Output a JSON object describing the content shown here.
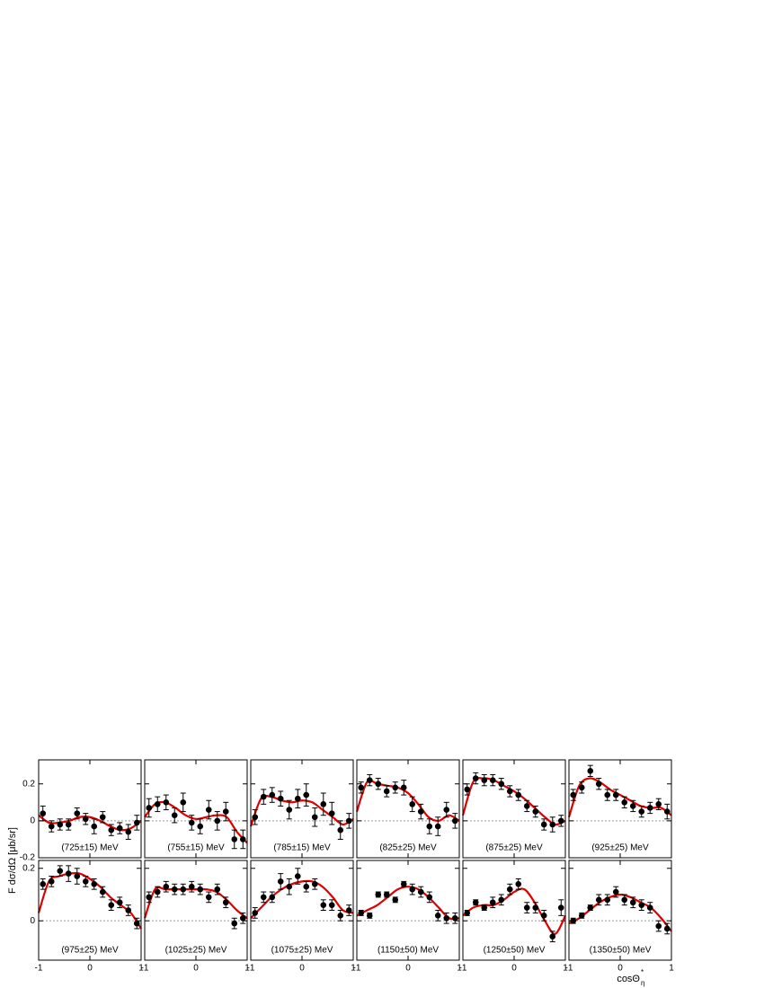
{
  "axis_labels": {
    "y": "F dσ/dΩ [μb/sr]",
    "x": "cosΘ",
    "x_sup": "*",
    "x_sub": "η"
  },
  "chart_data": [
    {
      "type": "scatter",
      "label": "(725±15) MeV",
      "color": "#000000",
      "fit_color": "#e00000",
      "zero_line": true,
      "x": [
        -0.917,
        -0.75,
        -0.583,
        -0.417,
        -0.25,
        -0.083,
        0.083,
        0.25,
        0.417,
        0.583,
        0.75,
        0.917
      ],
      "values": [
        0.04,
        -0.03,
        -0.02,
        -0.02,
        0.04,
        0.01,
        -0.03,
        0.02,
        -0.05,
        -0.04,
        -0.06,
        -0.01
      ],
      "errors": [
        0.04,
        0.03,
        0.03,
        0.03,
        0.03,
        0.03,
        0.04,
        0.03,
        0.03,
        0.03,
        0.04,
        0.04
      ],
      "fit": {
        "x": [
          -1,
          -0.8,
          -0.6,
          -0.4,
          -0.2,
          0,
          0.2,
          0.4,
          0.6,
          0.8,
          1
        ],
        "values": [
          0.03,
          -0.01,
          -0.01,
          0.0,
          0.02,
          0.02,
          0.0,
          -0.03,
          -0.05,
          -0.04,
          0.0
        ]
      },
      "xlim": [
        -1,
        1
      ],
      "xticks": [
        -1,
        0,
        1
      ],
      "ylim": [
        -0.2,
        0.33
      ],
      "yticks": [
        -0.2,
        0,
        0.2
      ]
    },
    {
      "type": "scatter",
      "label": "(755±15) MeV",
      "color": "#000000",
      "fit_color": "#e00000",
      "zero_line": true,
      "x": [
        -0.917,
        -0.75,
        -0.583,
        -0.417,
        -0.25,
        -0.083,
        0.083,
        0.25,
        0.417,
        0.583,
        0.75,
        0.917
      ],
      "values": [
        0.07,
        0.09,
        0.1,
        0.03,
        0.1,
        -0.01,
        -0.03,
        0.06,
        0.0,
        0.05,
        -0.1,
        -0.1
      ],
      "errors": [
        0.05,
        0.04,
        0.04,
        0.04,
        0.05,
        0.04,
        0.04,
        0.05,
        0.05,
        0.05,
        0.05,
        0.05
      ],
      "fit": {
        "x": [
          -1,
          -0.8,
          -0.6,
          -0.4,
          -0.2,
          0,
          0.2,
          0.4,
          0.6,
          0.8,
          1
        ],
        "values": [
          0.02,
          0.09,
          0.1,
          0.07,
          0.03,
          0.01,
          0.02,
          0.03,
          0.02,
          -0.06,
          -0.12
        ]
      },
      "xlim": [
        -1,
        1
      ],
      "xticks": [
        -1,
        0,
        1
      ],
      "ylim": [
        -0.2,
        0.33
      ],
      "yticks": [
        -0.2,
        0,
        0.2
      ]
    },
    {
      "type": "scatter",
      "label": "(785±15) MeV",
      "color": "#000000",
      "fit_color": "#e00000",
      "zero_line": true,
      "x": [
        -0.917,
        -0.75,
        -0.583,
        -0.417,
        -0.25,
        -0.083,
        0.083,
        0.25,
        0.417,
        0.583,
        0.75,
        0.917
      ],
      "values": [
        0.02,
        0.13,
        0.14,
        0.12,
        0.06,
        0.12,
        0.14,
        0.02,
        0.09,
        0.04,
        -0.05,
        0.0
      ],
      "errors": [
        0.04,
        0.04,
        0.04,
        0.04,
        0.05,
        0.05,
        0.06,
        0.05,
        0.06,
        0.06,
        0.05,
        0.04
      ],
      "fit": {
        "x": [
          -1,
          -0.8,
          -0.6,
          -0.4,
          -0.2,
          0,
          0.2,
          0.4,
          0.6,
          0.8,
          1
        ],
        "values": [
          -0.03,
          0.12,
          0.13,
          0.11,
          0.1,
          0.11,
          0.1,
          0.06,
          0.02,
          -0.02,
          0.01
        ]
      },
      "xlim": [
        -1,
        1
      ],
      "xticks": [
        -1,
        0,
        1
      ],
      "ylim": [
        -0.2,
        0.33
      ],
      "yticks": [
        -0.2,
        0,
        0.2
      ]
    },
    {
      "type": "scatter",
      "label": "(825±25) MeV",
      "color": "#000000",
      "fit_color": "#e00000",
      "zero_line": true,
      "x": [
        -0.917,
        -0.75,
        -0.583,
        -0.417,
        -0.25,
        -0.083,
        0.083,
        0.25,
        0.417,
        0.583,
        0.75,
        0.917
      ],
      "values": [
        0.18,
        0.22,
        0.2,
        0.16,
        0.18,
        0.18,
        0.09,
        0.05,
        -0.03,
        -0.03,
        0.06,
        0.0
      ],
      "errors": [
        0.03,
        0.03,
        0.03,
        0.03,
        0.03,
        0.04,
        0.04,
        0.04,
        0.04,
        0.05,
        0.04,
        0.04
      ],
      "fit": {
        "x": [
          -1,
          -0.8,
          -0.6,
          -0.4,
          -0.2,
          0,
          0.2,
          0.4,
          0.6,
          0.8,
          1
        ],
        "values": [
          0.05,
          0.21,
          0.2,
          0.19,
          0.18,
          0.15,
          0.09,
          0.02,
          0.0,
          0.03,
          0.0
        ]
      },
      "xlim": [
        -1,
        1
      ],
      "xticks": [
        -1,
        0,
        1
      ],
      "ylim": [
        -0.2,
        0.33
      ],
      "yticks": [
        -0.2,
        0,
        0.2
      ]
    },
    {
      "type": "scatter",
      "label": "(875±25) MeV",
      "color": "#000000",
      "fit_color": "#e00000",
      "zero_line": true,
      "x": [
        -0.917,
        -0.75,
        -0.583,
        -0.417,
        -0.25,
        -0.083,
        0.083,
        0.25,
        0.417,
        0.583,
        0.75,
        0.917
      ],
      "values": [
        0.17,
        0.23,
        0.22,
        0.22,
        0.2,
        0.16,
        0.14,
        0.08,
        0.05,
        -0.02,
        -0.02,
        0.0
      ],
      "errors": [
        0.03,
        0.03,
        0.03,
        0.03,
        0.03,
        0.03,
        0.03,
        0.03,
        0.03,
        0.03,
        0.04,
        0.03
      ],
      "fit": {
        "x": [
          -1,
          -0.8,
          -0.6,
          -0.4,
          -0.2,
          0,
          0.2,
          0.4,
          0.6,
          0.8,
          1
        ],
        "values": [
          0.03,
          0.21,
          0.23,
          0.22,
          0.19,
          0.16,
          0.12,
          0.07,
          0.02,
          -0.02,
          0.0
        ]
      },
      "xlim": [
        -1,
        1
      ],
      "xticks": [
        -1,
        0,
        1
      ],
      "ylim": [
        -0.2,
        0.33
      ],
      "yticks": [
        -0.2,
        0,
        0.2
      ]
    },
    {
      "type": "scatter",
      "label": "(925±25) MeV",
      "color": "#000000",
      "fit_color": "#e00000",
      "zero_line": true,
      "x": [
        -0.917,
        -0.75,
        -0.583,
        -0.417,
        -0.25,
        -0.083,
        0.083,
        0.25,
        0.417,
        0.583,
        0.75,
        0.917
      ],
      "values": [
        0.14,
        0.18,
        0.27,
        0.2,
        0.14,
        0.14,
        0.1,
        0.08,
        0.05,
        0.07,
        0.09,
        0.05
      ],
      "errors": [
        0.03,
        0.03,
        0.03,
        0.03,
        0.03,
        0.03,
        0.03,
        0.03,
        0.03,
        0.03,
        0.03,
        0.04
      ],
      "fit": {
        "x": [
          -1,
          -0.8,
          -0.6,
          -0.4,
          -0.2,
          0,
          0.2,
          0.4,
          0.6,
          0.8,
          1
        ],
        "values": [
          0.02,
          0.19,
          0.23,
          0.21,
          0.17,
          0.14,
          0.11,
          0.08,
          0.07,
          0.07,
          0.03
        ]
      },
      "xlim": [
        -1,
        1
      ],
      "xticks": [
        -1,
        0,
        1
      ],
      "ylim": [
        -0.2,
        0.33
      ],
      "yticks": [
        -0.2,
        0,
        0.2
      ]
    },
    {
      "type": "scatter",
      "label": "(975±25) MeV",
      "color": "#000000",
      "fit_color": "#e00000",
      "zero_line": true,
      "x": [
        -0.917,
        -0.75,
        -0.583,
        -0.417,
        -0.25,
        -0.083,
        0.083,
        0.25,
        0.417,
        0.583,
        0.75,
        0.917
      ],
      "values": [
        0.14,
        0.15,
        0.19,
        0.18,
        0.17,
        0.15,
        0.14,
        0.11,
        0.06,
        0.07,
        0.04,
        -0.01
      ],
      "errors": [
        0.02,
        0.02,
        0.02,
        0.03,
        0.03,
        0.02,
        0.02,
        0.02,
        0.02,
        0.02,
        0.02,
        0.02
      ],
      "fit": {
        "x": [
          -1,
          -0.8,
          -0.6,
          -0.4,
          -0.2,
          0,
          0.2,
          0.4,
          0.6,
          0.8,
          1
        ],
        "values": [
          0.03,
          0.15,
          0.17,
          0.18,
          0.18,
          0.16,
          0.13,
          0.09,
          0.06,
          0.03,
          -0.03
        ]
      },
      "xlim": [
        -1,
        1
      ],
      "xticks": [
        -1,
        0,
        1
      ],
      "ylim": [
        -0.15,
        0.23
      ],
      "yticks": [
        0,
        0.2
      ]
    },
    {
      "type": "scatter",
      "label": "(1025±25) MeV",
      "color": "#000000",
      "fit_color": "#e00000",
      "zero_line": true,
      "x": [
        -0.917,
        -0.75,
        -0.583,
        -0.417,
        -0.25,
        -0.083,
        0.083,
        0.25,
        0.417,
        0.583,
        0.75,
        0.917
      ],
      "values": [
        0.09,
        0.11,
        0.13,
        0.12,
        0.12,
        0.13,
        0.12,
        0.09,
        0.12,
        0.07,
        -0.01,
        0.01
      ],
      "errors": [
        0.02,
        0.02,
        0.02,
        0.02,
        0.02,
        0.02,
        0.02,
        0.02,
        0.02,
        0.02,
        0.02,
        0.02
      ],
      "fit": {
        "x": [
          -1,
          -0.8,
          -0.6,
          -0.4,
          -0.2,
          0,
          0.2,
          0.4,
          0.6,
          0.8,
          1
        ],
        "values": [
          0.01,
          0.12,
          0.12,
          0.12,
          0.12,
          0.12,
          0.12,
          0.11,
          0.08,
          0.04,
          0.01
        ]
      },
      "xlim": [
        -1,
        1
      ],
      "xticks": [
        -1,
        0,
        1
      ],
      "ylim": [
        -0.15,
        0.23
      ],
      "yticks": [
        0,
        0.2
      ]
    },
    {
      "type": "scatter",
      "label": "(1075±25) MeV",
      "color": "#000000",
      "fit_color": "#e00000",
      "zero_line": true,
      "x": [
        -0.917,
        -0.75,
        -0.583,
        -0.417,
        -0.25,
        -0.083,
        0.083,
        0.25,
        0.417,
        0.583,
        0.75,
        0.917
      ],
      "values": [
        0.03,
        0.09,
        0.09,
        0.15,
        0.13,
        0.17,
        0.13,
        0.14,
        0.06,
        0.06,
        0.02,
        0.04
      ],
      "errors": [
        0.02,
        0.02,
        0.02,
        0.03,
        0.03,
        0.03,
        0.02,
        0.02,
        0.02,
        0.02,
        0.02,
        0.02
      ],
      "fit": {
        "x": [
          -1,
          -0.8,
          -0.6,
          -0.4,
          -0.2,
          0,
          0.2,
          0.4,
          0.6,
          0.8,
          1
        ],
        "values": [
          0.01,
          0.05,
          0.09,
          0.12,
          0.14,
          0.15,
          0.15,
          0.13,
          0.09,
          0.04,
          0.03
        ]
      },
      "xlim": [
        -1,
        1
      ],
      "xticks": [
        -1,
        0,
        1
      ],
      "ylim": [
        -0.15,
        0.23
      ],
      "yticks": [
        0,
        0.2
      ]
    },
    {
      "type": "scatter",
      "label": "(1150±50) MeV",
      "color": "#000000",
      "fit_color": "#e00000",
      "zero_line": true,
      "x": [
        -0.917,
        -0.75,
        -0.583,
        -0.417,
        -0.25,
        -0.083,
        0.083,
        0.25,
        0.417,
        0.583,
        0.75,
        0.917
      ],
      "values": [
        0.03,
        0.02,
        0.1,
        0.1,
        0.08,
        0.14,
        0.12,
        0.11,
        0.09,
        0.02,
        0.01,
        0.01
      ],
      "errors": [
        0.01,
        0.01,
        0.01,
        0.01,
        0.01,
        0.01,
        0.02,
        0.02,
        0.02,
        0.02,
        0.02,
        0.02
      ],
      "fit": {
        "x": [
          -1,
          -0.8,
          -0.6,
          -0.4,
          -0.2,
          0,
          0.2,
          0.4,
          0.6,
          0.8,
          1
        ],
        "values": [
          0.02,
          0.04,
          0.06,
          0.09,
          0.12,
          0.13,
          0.12,
          0.09,
          0.05,
          0.01,
          0.01
        ]
      },
      "xlim": [
        -1,
        1
      ],
      "xticks": [
        -1,
        0,
        1
      ],
      "ylim": [
        -0.15,
        0.23
      ],
      "yticks": [
        0,
        0.2
      ]
    },
    {
      "type": "scatter",
      "label": "(1250±50) MeV",
      "color": "#000000",
      "fit_color": "#e00000",
      "zero_line": true,
      "x": [
        -0.917,
        -0.75,
        -0.583,
        -0.417,
        -0.25,
        -0.083,
        0.083,
        0.25,
        0.417,
        0.583,
        0.75,
        0.917
      ],
      "values": [
        0.03,
        0.07,
        0.05,
        0.07,
        0.08,
        0.12,
        0.14,
        0.05,
        0.05,
        0.02,
        -0.06,
        0.05
      ],
      "errors": [
        0.01,
        0.01,
        0.01,
        0.02,
        0.02,
        0.02,
        0.02,
        0.02,
        0.02,
        0.02,
        0.02,
        0.03
      ],
      "fit": {
        "x": [
          -1,
          -0.8,
          -0.6,
          -0.4,
          -0.2,
          0,
          0.2,
          0.4,
          0.6,
          0.8,
          1
        ],
        "values": [
          0.02,
          0.05,
          0.06,
          0.06,
          0.08,
          0.11,
          0.12,
          0.07,
          0.0,
          -0.05,
          0.02
        ]
      },
      "xlim": [
        -1,
        1
      ],
      "xticks": [
        -1,
        0,
        1
      ],
      "ylim": [
        -0.15,
        0.23
      ],
      "yticks": [
        0,
        0.2
      ]
    },
    {
      "type": "scatter",
      "label": "(1350±50) MeV",
      "color": "#000000",
      "fit_color": "#e00000",
      "zero_line": true,
      "x": [
        -0.917,
        -0.75,
        -0.583,
        -0.417,
        -0.25,
        -0.083,
        0.083,
        0.25,
        0.417,
        0.583,
        0.75,
        0.917
      ],
      "values": [
        0.0,
        0.02,
        0.05,
        0.08,
        0.08,
        0.11,
        0.08,
        0.07,
        0.06,
        0.05,
        -0.02,
        -0.03
      ],
      "errors": [
        0.01,
        0.01,
        0.01,
        0.02,
        0.02,
        0.02,
        0.02,
        0.02,
        0.02,
        0.02,
        0.02,
        0.02
      ],
      "fit": {
        "x": [
          -1,
          -0.8,
          -0.6,
          -0.4,
          -0.2,
          0,
          0.2,
          0.4,
          0.6,
          0.8,
          1
        ],
        "values": [
          -0.01,
          0.01,
          0.04,
          0.07,
          0.09,
          0.1,
          0.09,
          0.07,
          0.05,
          0.01,
          -0.04
        ]
      },
      "xlim": [
        -1,
        1
      ],
      "xticks": [
        -1,
        0,
        1
      ],
      "ylim": [
        -0.15,
        0.23
      ],
      "yticks": [
        0,
        0.2
      ]
    }
  ]
}
